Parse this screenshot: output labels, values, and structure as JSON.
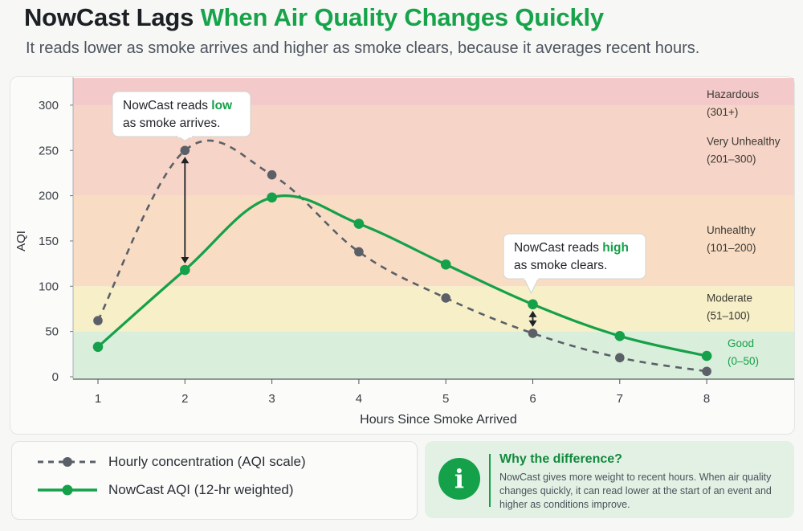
{
  "header": {
    "title_dark": "NowCast Lags",
    "title_green": "When Air Quality Changes Quickly",
    "subtitle": "It reads lower as smoke arrives and higher as smoke clears, because it averages recent hours."
  },
  "colors": {
    "nowcast": "#15a04a",
    "hourly": "#5b6068",
    "good": "#d9eedb",
    "moderate": "#f6efc7",
    "unhealthy": "#f9dcc4",
    "very_unhealthy": "#f6d4c7",
    "hazardous": "#f3c9c9"
  },
  "chart_data": {
    "type": "line",
    "xlabel": "Hours Since Smoke Arrived",
    "ylabel": "AQI",
    "x": [
      1,
      2,
      3,
      4,
      5,
      6,
      7,
      8
    ],
    "x_ticks": [
      "1",
      "2",
      "3",
      "4",
      "5",
      "6",
      "7",
      "8"
    ],
    "y_ticks": [
      "0",
      "50",
      "100",
      "150",
      "200",
      "250",
      "300"
    ],
    "xlim": [
      0.7,
      8.3
    ],
    "ylim": [
      0,
      330
    ],
    "grid": false,
    "series": [
      {
        "name": "Hourly concentration (AQI scale)",
        "style": "dashed",
        "color": "#5b6068",
        "values": [
          62,
          250,
          223,
          138,
          87,
          48,
          21,
          6
        ]
      },
      {
        "name": "NowCast AQI (12-hr weighted)",
        "style": "solid",
        "color": "#15a04a",
        "values": [
          33,
          118,
          198,
          169,
          124,
          80,
          45,
          23
        ]
      }
    ],
    "bands": [
      {
        "label": "Good",
        "range": "(0–50)",
        "from": 0,
        "to": 50,
        "color": "#d9eedb",
        "text_color": "#15a04a"
      },
      {
        "label": "Moderate",
        "range": "(51–100)",
        "from": 50,
        "to": 100,
        "color": "#f6efc7",
        "text_color": "#3d3a35"
      },
      {
        "label": "Unhealthy",
        "range": "(101–200)",
        "from": 100,
        "to": 200,
        "color": "#f9dcc4",
        "text_color": "#3d3a35"
      },
      {
        "label": "Very Unhealthy",
        "range": "(201–300)",
        "from": 200,
        "to": 300,
        "color": "#f6d4c7",
        "text_color": "#3d3a35"
      },
      {
        "label": "Hazardous",
        "range": "(301+)",
        "from": 300,
        "to": 330,
        "color": "#f3c9c9",
        "text_color": "#3d3a35"
      }
    ],
    "annotations": [
      {
        "pre": "NowCast reads ",
        "em": "low",
        "line2": "as smoke arrives.",
        "x": 2
      },
      {
        "pre": "NowCast reads ",
        "em": "high",
        "line2": "as smoke clears.",
        "x": 6
      }
    ]
  },
  "info": {
    "icon": "info-icon",
    "title": "Why the difference?",
    "body": "NowCast gives more weight to recent hours. When air quality changes quickly, it can read lower at the start of an event and higher as conditions improve."
  }
}
